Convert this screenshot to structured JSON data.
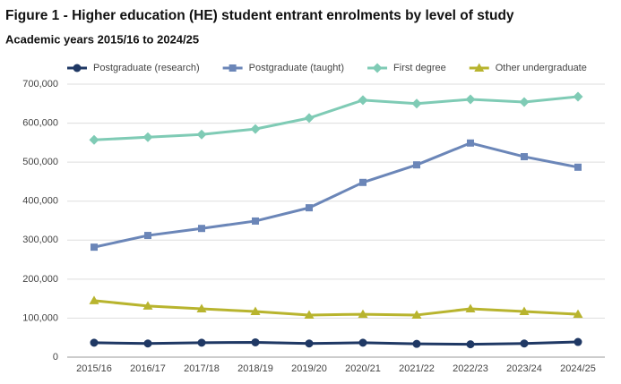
{
  "chart_data": {
    "type": "line",
    "title": "Figure 1 - Higher education (HE) student entrant enrolments by level of study",
    "subtitle": "Academic years 2015/16 to 2024/25",
    "categories": [
      "2015/16",
      "2016/17",
      "2017/18",
      "2018/19",
      "2019/20",
      "2020/21",
      "2021/22",
      "2022/23",
      "2023/24",
      "2024/25"
    ],
    "series": [
      {
        "name": "Postgraduate (research)",
        "color": "#1f3864",
        "marker": "circle",
        "values": [
          37000,
          35000,
          37000,
          38000,
          35000,
          37000,
          34000,
          33000,
          35000,
          39000
        ]
      },
      {
        "name": "Postgraduate (taught)",
        "color": "#6b86b8",
        "marker": "square",
        "values": [
          282000,
          312000,
          330000,
          349000,
          383000,
          448000,
          493000,
          549000,
          514000,
          487000
        ]
      },
      {
        "name": "First degree",
        "color": "#7fcbb5",
        "marker": "diamond",
        "values": [
          557000,
          564000,
          571000,
          585000,
          613000,
          659000,
          650000,
          661000,
          654000,
          668000
        ]
      },
      {
        "name": "Other undergraduate",
        "color": "#b8b42e",
        "marker": "triangle",
        "values": [
          145000,
          131000,
          124000,
          117000,
          108000,
          110000,
          108000,
          124000,
          117000,
          110000
        ]
      }
    ],
    "ylim": [
      0,
      700000
    ],
    "yticks": [
      0,
      {
        "value": 100000,
        "label": "100,000"
      },
      {
        "value": 200000,
        "label": "200,000"
      },
      {
        "value": 300000,
        "label": "300,000"
      },
      {
        "value": 400000,
        "label": "400,000"
      },
      {
        "value": 500000,
        "label": "500,000"
      },
      {
        "value": 600000,
        "label": "600,000"
      },
      {
        "value": 700000,
        "label": "700,000"
      }
    ],
    "grid": true,
    "legend": "top"
  }
}
